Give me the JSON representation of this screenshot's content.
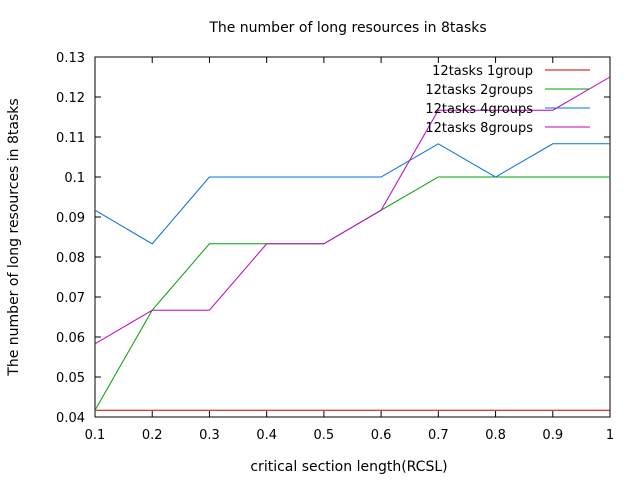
{
  "chart_data": {
    "type": "line",
    "title": "The number of long resources in 8tasks",
    "xlabel": "critical section length(RCSL)",
    "ylabel": "The number of long resources in 8tasks",
    "x": [
      0.1,
      0.2,
      0.3,
      0.4,
      0.5,
      0.6,
      0.7,
      0.8,
      0.9,
      1
    ],
    "x_ticks": [
      "0.1",
      "0.2",
      "0.3",
      "0.4",
      "0.5",
      "0.6",
      "0.7",
      "0.8",
      "0.9",
      "1"
    ],
    "y_ticks": [
      "0.04",
      "0.05",
      "0.06",
      "0.07",
      "0.08",
      "0.09",
      "0.1",
      "0.11",
      "0.12",
      "0.13"
    ],
    "xlim": [
      0.1,
      1
    ],
    "ylim": [
      0.04,
      0.13
    ],
    "grid": false,
    "legend_position": "top-right",
    "series": [
      {
        "name": "12tasks 1group",
        "color": "#cc0000",
        "values": [
          0.0417,
          0.0417,
          0.0417,
          0.0417,
          0.0417,
          0.0417,
          0.0417,
          0.0417,
          0.0417,
          0.0417
        ]
      },
      {
        "name": "12tasks 2groups",
        "color": "#00a000",
        "values": [
          0.0417,
          0.0667,
          0.0833,
          0.0833,
          0.0833,
          0.0917,
          0.1,
          0.1,
          0.1,
          0.1
        ]
      },
      {
        "name": "12tasks 4groups",
        "color": "#0070e0",
        "values": [
          0.0917,
          0.0833,
          0.1,
          0.1,
          0.1,
          0.1,
          0.1083,
          0.1,
          0.1083,
          0.1083
        ]
      },
      {
        "name": "12tasks 8groups",
        "color": "#c000c0",
        "values": [
          0.0583,
          0.0667,
          0.0667,
          0.0833,
          0.0833,
          0.0917,
          0.1167,
          0.1167,
          0.1167,
          0.125
        ]
      }
    ]
  }
}
